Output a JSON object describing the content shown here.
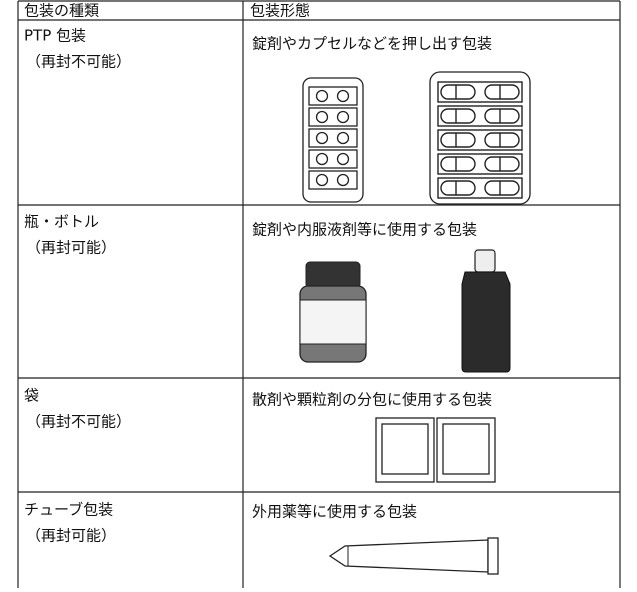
{
  "table": {
    "header": [
      "包装の種類",
      "包装形態"
    ],
    "rows": [
      [
        "PTP 包装",
        "（再封不可能）",
        "錠剤やカプセルなどを押し出す包装"
      ],
      [
        "瓶・ボトル",
        "（再封可能）",
        "錠剤や内服液剤等に使用する包装"
      ],
      [
        "袋",
        "（再封不可能）",
        "散剤や顆粒剤の分包に使用する包装"
      ],
      [
        "チューブ包装",
        "（再封可能）",
        "外用薬等に使用する包装"
      ]
    ]
  }
}
